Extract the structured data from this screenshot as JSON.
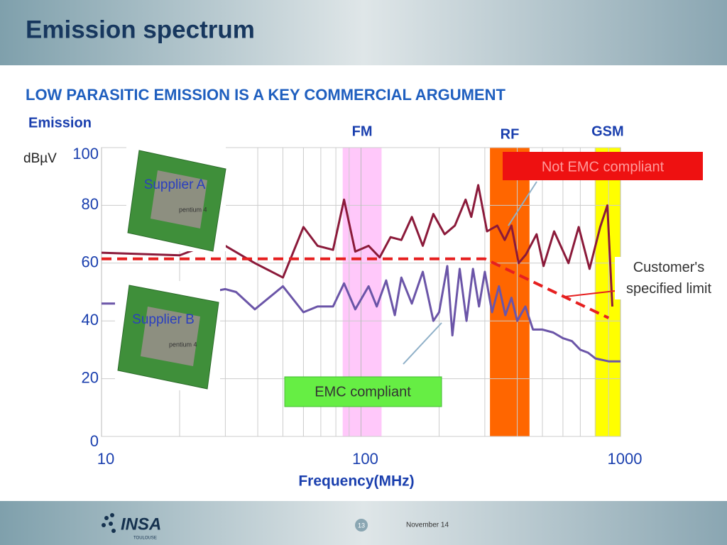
{
  "header": {
    "title": "Emission spectrum"
  },
  "subtitle": "LOW PARASITIC EMISSION IS A KEY COMMERCIAL ARGUMENT",
  "chip_text": "pentium 4",
  "chart_data": {
    "type": "line",
    "y_label": "Emission",
    "y_unit": "dBµV",
    "x_label": "Frequency(MHz)",
    "xscale": "log",
    "grid": true,
    "minor_grid": true,
    "xlim": [
      10,
      1000
    ],
    "xticks": [
      10,
      100,
      1000
    ],
    "ylim": [
      0,
      100
    ],
    "yticks": [
      0,
      20,
      40,
      60,
      80,
      100
    ],
    "bands": [
      {
        "name": "FM",
        "range": [
          85,
          120
        ],
        "color": "#ffc8fa",
        "label_color": "#1a3fae"
      },
      {
        "name": "RF",
        "range": [
          314,
          446
        ],
        "color": "#ff6600",
        "label_color": "#1a3fae"
      },
      {
        "name": "GSM",
        "range": [
          796,
          1000
        ],
        "color": "#ffff00",
        "label_color": "#1a3fae"
      }
    ],
    "series": [
      {
        "name": "Supplier A",
        "color": "#8b1a3a",
        "x": [
          10,
          20,
          25,
          30,
          39,
          50,
          60,
          68,
          78,
          86,
          95,
          107,
          118,
          130,
          143,
          157,
          173,
          190,
          210,
          230,
          253,
          266,
          283,
          306,
          335,
          358,
          380,
          405,
          432,
          475,
          505,
          555,
          630,
          690,
          760,
          835,
          890,
          930
        ],
        "values": [
          63.6,
          62.7,
          66,
          66,
          60,
          55,
          72.5,
          66,
          64.6,
          82,
          64,
          66,
          62,
          69,
          68,
          76,
          66,
          77,
          70,
          73,
          82,
          76,
          87,
          71,
          73,
          68,
          73,
          60,
          63,
          70,
          59,
          71,
          60,
          72.5,
          58,
          72.5,
          80,
          45
        ]
      },
      {
        "name": "Supplier B",
        "color": "#6b55a8",
        "x": [
          10,
          15,
          30,
          33,
          39,
          50,
          60,
          68,
          78,
          86,
          95,
          107,
          115,
          125,
          135,
          143,
          157,
          173,
          190,
          200,
          215,
          225,
          240,
          255,
          270,
          285,
          300,
          320,
          340,
          360,
          380,
          400,
          430,
          460,
          500,
          550,
          600,
          650,
          700,
          750,
          800,
          900,
          1000
        ],
        "values": [
          46,
          46,
          51,
          50,
          44,
          52,
          43,
          45,
          45,
          53,
          44,
          52,
          45,
          54,
          42,
          55,
          46,
          57,
          40,
          43,
          59,
          35,
          58,
          40,
          58,
          45,
          57,
          43,
          52,
          42,
          48,
          40,
          45,
          37,
          37,
          36,
          34,
          33,
          30,
          29,
          27,
          26,
          26
        ]
      },
      {
        "name": "Customer's specified limit",
        "color": "#e62020",
        "dashed": true,
        "x": [
          10,
          300,
          900
        ],
        "values": [
          61.5,
          61.5,
          41
        ]
      }
    ],
    "annotations": [
      "Not EMC compliant",
      "EMC compliant"
    ]
  },
  "footer": {
    "logo": "INSA",
    "logo_sub": "TOULOUSE",
    "page": "13",
    "date": "November 14"
  }
}
